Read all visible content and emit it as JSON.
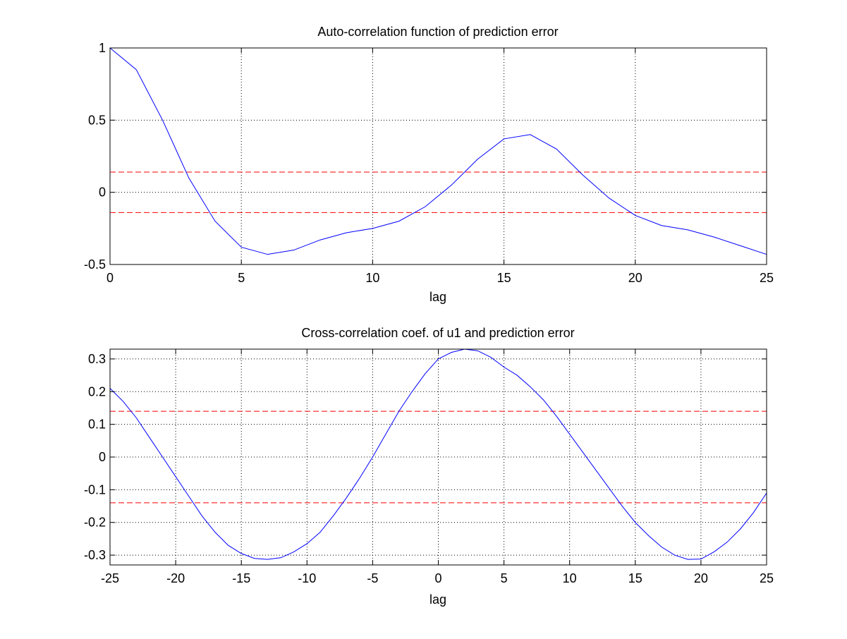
{
  "figure": {
    "background": "#ffffff",
    "axes_color": "#000000",
    "grid_color": "#000000",
    "series_color": "#0000ff",
    "threshold_color": "#ff0000"
  },
  "chart_data": [
    {
      "type": "line",
      "title": "Auto-correlation function of prediction error",
      "xlabel": "lag",
      "ylabel": "",
      "xlim": [
        0,
        25
      ],
      "ylim": [
        -0.5,
        1
      ],
      "xticks": [
        0,
        5,
        10,
        15,
        20,
        25
      ],
      "xtick_labels": [
        "0",
        "5",
        "10",
        "15",
        "20",
        "25"
      ],
      "yticks": [
        -0.5,
        0,
        0.5,
        1
      ],
      "ytick_labels": [
        "-0.5",
        "0",
        "0.5",
        "1"
      ],
      "grid": true,
      "series": [
        {
          "style": "solid",
          "color": "#0000ff",
          "x": [
            0,
            1,
            2,
            3,
            4,
            5,
            6,
            7,
            8,
            9,
            10,
            11,
            12,
            13,
            14,
            15,
            16,
            17,
            18,
            19,
            20,
            21,
            22,
            23,
            24,
            25
          ],
          "y": [
            1.0,
            0.85,
            0.5,
            0.1,
            -0.2,
            -0.38,
            -0.43,
            -0.4,
            -0.33,
            -0.28,
            -0.25,
            -0.2,
            -0.1,
            0.05,
            0.23,
            0.37,
            0.4,
            0.3,
            0.12,
            -0.04,
            -0.16,
            -0.23,
            -0.26,
            -0.31,
            -0.37,
            -0.43
          ]
        }
      ],
      "thresholds": [
        {
          "y": 0.14,
          "style": "dashed",
          "color": "#ff0000"
        },
        {
          "y": -0.14,
          "style": "dashed",
          "color": "#ff0000"
        }
      ]
    },
    {
      "type": "line",
      "title": "Cross-correlation coef. of u1 and prediction error",
      "xlabel": "lag",
      "ylabel": "",
      "xlim": [
        -25,
        25
      ],
      "ylim": [
        -0.33,
        0.33
      ],
      "xticks": [
        -25,
        -20,
        -15,
        -10,
        -5,
        0,
        5,
        10,
        15,
        20,
        25
      ],
      "xtick_labels": [
        "-25",
        "-20",
        "-15",
        "-10",
        "-5",
        "0",
        "5",
        "10",
        "15",
        "20",
        "25"
      ],
      "yticks": [
        -0.3,
        -0.2,
        -0.1,
        0,
        0.1,
        0.2,
        0.3
      ],
      "ytick_labels": [
        "-0.3",
        "-0.2",
        "-0.1",
        "0",
        "0.1",
        "0.2",
        "0.3"
      ],
      "grid": true,
      "series": [
        {
          "style": "solid",
          "color": "#0000ff",
          "x": [
            -25,
            -24,
            -23,
            -22,
            -21,
            -20,
            -19,
            -18,
            -17,
            -16,
            -15,
            -14,
            -13,
            -12,
            -11,
            -10,
            -9,
            -8,
            -7,
            -6,
            -5,
            -4,
            -3,
            -2,
            -1,
            0,
            1,
            2,
            3,
            4,
            5,
            6,
            7,
            8,
            9,
            10,
            11,
            12,
            13,
            14,
            15,
            16,
            17,
            18,
            19,
            20,
            21,
            22,
            23,
            24,
            25
          ],
          "y": [
            0.21,
            0.17,
            0.12,
            0.06,
            0.0,
            -0.06,
            -0.12,
            -0.18,
            -0.23,
            -0.27,
            -0.295,
            -0.31,
            -0.313,
            -0.308,
            -0.29,
            -0.265,
            -0.23,
            -0.18,
            -0.125,
            -0.065,
            0.0,
            0.07,
            0.14,
            0.2,
            0.255,
            0.3,
            0.32,
            0.33,
            0.325,
            0.305,
            0.275,
            0.25,
            0.215,
            0.175,
            0.125,
            0.07,
            0.015,
            -0.04,
            -0.095,
            -0.15,
            -0.2,
            -0.24,
            -0.275,
            -0.3,
            -0.313,
            -0.312,
            -0.29,
            -0.26,
            -0.22,
            -0.17,
            -0.11
          ]
        }
      ],
      "thresholds": [
        {
          "y": 0.14,
          "style": "dashed",
          "color": "#ff0000"
        },
        {
          "y": -0.14,
          "style": "dashed",
          "color": "#ff0000"
        }
      ]
    }
  ]
}
